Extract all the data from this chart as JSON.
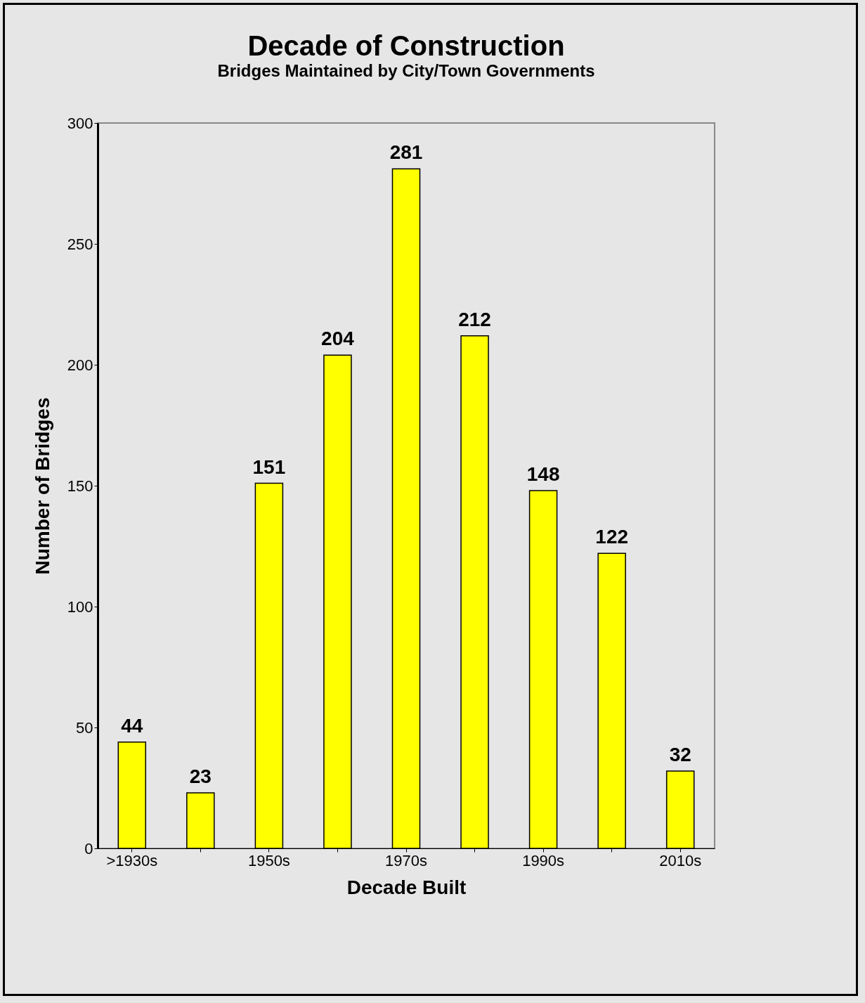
{
  "chart_data": {
    "type": "bar",
    "title": "Decade of Construction",
    "subtitle": "Bridges Maintained by City/Town Governments",
    "xlabel": "Decade Built",
    "ylabel": "Number of Bridges",
    "categories": [
      ">1930s",
      null,
      "1950s",
      null,
      "1970s",
      null,
      "1990s",
      null,
      "2010s"
    ],
    "values": [
      44,
      23,
      151,
      204,
      281,
      212,
      148,
      122,
      32
    ],
    "color": "#ffff00",
    "ylim": [
      0,
      300
    ],
    "yticks": [
      0,
      50,
      100,
      150,
      200,
      250,
      300
    ],
    "grid": false,
    "data_labels": true
  }
}
